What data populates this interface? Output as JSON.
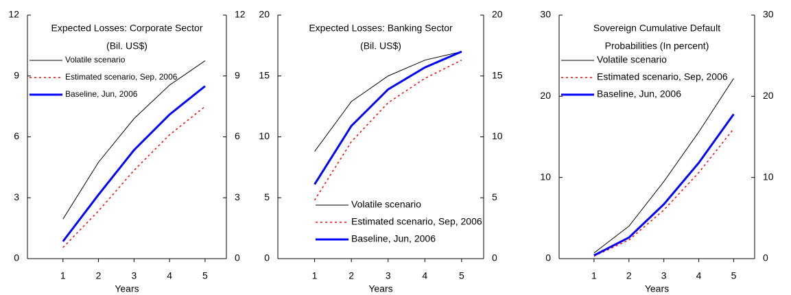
{
  "chart_data": [
    {
      "type": "line",
      "title": "Expected Losses: Corporate Sector",
      "subtitle": "(Bil. US$)",
      "xlabel": "Years",
      "x": [
        1,
        2,
        3,
        4,
        5
      ],
      "xlim": [
        0,
        5.6
      ],
      "xticks": [
        1,
        2,
        3,
        4,
        5
      ],
      "ylim": [
        0,
        12
      ],
      "yticks": [
        0,
        3,
        6,
        9,
        12
      ],
      "y2lim": [
        0,
        12
      ],
      "y2ticks": [
        0,
        3,
        6,
        9,
        12
      ],
      "legend": "upper left",
      "series": [
        {
          "name": "Volatile scenario",
          "color": "#000000",
          "linestyle": "solid",
          "linewidth": 1,
          "values": [
            1.95,
            4.75,
            6.9,
            8.55,
            9.75
          ]
        },
        {
          "name": "Estimated scenario, Sep, 2006",
          "color": "#ff0000",
          "linestyle": "dotted",
          "linewidth": 1.5,
          "values": [
            0.55,
            2.35,
            4.35,
            6.1,
            7.5
          ]
        },
        {
          "name": "Baseline, Jun, 2006",
          "color": "#0000ff",
          "linestyle": "solid",
          "linewidth": 3,
          "values": [
            0.85,
            3.15,
            5.35,
            7.1,
            8.5
          ]
        }
      ]
    },
    {
      "type": "line",
      "title": "Expected Losses: Banking Sector",
      "subtitle": "(Bil. US$)",
      "xlabel": "Years",
      "x": [
        1,
        2,
        3,
        4,
        5
      ],
      "xlim": [
        0,
        5.6
      ],
      "xticks": [
        1,
        2,
        3,
        4,
        5
      ],
      "ylim": [
        0,
        20
      ],
      "yticks": [
        0,
        5,
        10,
        15,
        20
      ],
      "y2lim": [
        0,
        20
      ],
      "y2ticks": [
        0,
        5,
        10,
        15,
        20
      ],
      "legend": "lower right",
      "series": [
        {
          "name": "Volatile scenario",
          "color": "#000000",
          "linestyle": "solid",
          "linewidth": 1,
          "values": [
            8.8,
            12.9,
            15.0,
            16.3,
            17.0
          ]
        },
        {
          "name": "Estimated scenario, Sep, 2006",
          "color": "#ff0000",
          "linestyle": "dotted",
          "linewidth": 1.5,
          "values": [
            4.8,
            9.6,
            12.8,
            14.8,
            16.3
          ]
        },
        {
          "name": "Baseline, Jun, 2006",
          "color": "#0000ff",
          "linestyle": "solid",
          "linewidth": 3,
          "values": [
            6.1,
            10.9,
            13.9,
            15.7,
            17.0
          ]
        }
      ]
    },
    {
      "type": "line",
      "title": "Sovereign Cumulative Default",
      "subtitle": "Probabilities (In percent)",
      "xlabel": "Years",
      "x": [
        1,
        2,
        3,
        4,
        5
      ],
      "xlim": [
        0,
        5.6
      ],
      "xticks": [
        1,
        2,
        3,
        4,
        5
      ],
      "ylim": [
        0,
        30
      ],
      "yticks": [
        0,
        10,
        20,
        30
      ],
      "y2lim": [
        0,
        30
      ],
      "y2ticks": [
        0,
        10,
        20,
        30
      ],
      "legend": "upper left",
      "series": [
        {
          "name": "Volatile scenario",
          "color": "#000000",
          "linestyle": "solid",
          "linewidth": 1,
          "values": [
            0.7,
            4.0,
            9.5,
            15.6,
            22.2
          ]
        },
        {
          "name": "Estimated scenario, Sep, 2006",
          "color": "#ff0000",
          "linestyle": "dotted",
          "linewidth": 1.5,
          "values": [
            0.3,
            2.3,
            6.0,
            10.6,
            16.0
          ]
        },
        {
          "name": "Baseline, Jun, 2006",
          "color": "#0000ff",
          "linestyle": "solid",
          "linewidth": 3,
          "values": [
            0.4,
            2.6,
            6.7,
            11.8,
            17.8
          ]
        }
      ]
    }
  ]
}
